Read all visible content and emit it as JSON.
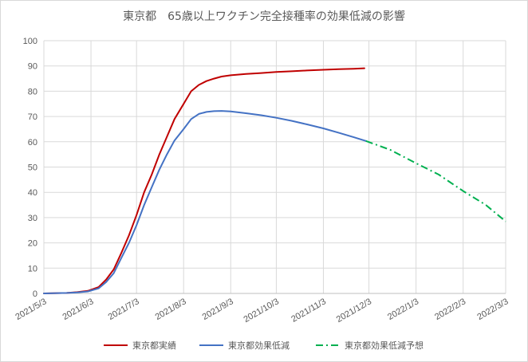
{
  "chart_data": {
    "type": "line",
    "title": "東京都　65歳以上ワクチン完全接種率の効果低減の影響",
    "xlabel": "",
    "ylabel": "",
    "ylim": [
      0,
      100
    ],
    "yticks": [
      0,
      10,
      20,
      30,
      40,
      50,
      60,
      70,
      80,
      90,
      100
    ],
    "xlim": [
      "2021/5/3",
      "2022/3/3"
    ],
    "xticks": [
      "2021/5/3",
      "2021/6/3",
      "2021/7/3",
      "2021/8/3",
      "2021/9/3",
      "2021/10/3",
      "2021/11/3",
      "2021/12/3",
      "2022/1/3",
      "2022/2/3",
      "2022/3/3"
    ],
    "grid": true,
    "legend_position": "bottom",
    "colors": {
      "grid": "#d9d9d9",
      "axis": "#bfbfbf"
    },
    "series": [
      {
        "name": "東京都実績",
        "color": "#c00000",
        "style": "solid",
        "points": [
          [
            "2021/5/3",
            0
          ],
          [
            "2021/5/18",
            0.2
          ],
          [
            "2021/5/25",
            0.5
          ],
          [
            "2021/6/1",
            1.0
          ],
          [
            "2021/6/8",
            2.5
          ],
          [
            "2021/6/13",
            5.5
          ],
          [
            "2021/6/18",
            9.5
          ],
          [
            "2021/6/23",
            16
          ],
          [
            "2021/6/28",
            23
          ],
          [
            "2021/7/3",
            31
          ],
          [
            "2021/7/8",
            40
          ],
          [
            "2021/7/13",
            47
          ],
          [
            "2021/7/18",
            55
          ],
          [
            "2021/7/23",
            62
          ],
          [
            "2021/7/28",
            69
          ],
          [
            "2021/8/3",
            75
          ],
          [
            "2021/8/8",
            80
          ],
          [
            "2021/8/13",
            82.5
          ],
          [
            "2021/8/18",
            84
          ],
          [
            "2021/8/23",
            85
          ],
          [
            "2021/8/28",
            85.8
          ],
          [
            "2021/9/3",
            86.3
          ],
          [
            "2021/9/13",
            86.8
          ],
          [
            "2021/9/23",
            87.2
          ],
          [
            "2021/10/3",
            87.6
          ],
          [
            "2021/10/13",
            87.9
          ],
          [
            "2021/10/23",
            88.2
          ],
          [
            "2021/11/3",
            88.5
          ],
          [
            "2021/11/13",
            88.7
          ],
          [
            "2021/11/23",
            88.9
          ],
          [
            "2021/11/30",
            89.1
          ]
        ]
      },
      {
        "name": "東京都効果低減",
        "color": "#4472c4",
        "style": "solid",
        "points": [
          [
            "2021/5/3",
            0
          ],
          [
            "2021/5/18",
            0.2
          ],
          [
            "2021/5/25",
            0.4
          ],
          [
            "2021/6/1",
            0.8
          ],
          [
            "2021/6/8",
            2.0
          ],
          [
            "2021/6/13",
            4.5
          ],
          [
            "2021/6/18",
            8
          ],
          [
            "2021/6/23",
            14
          ],
          [
            "2021/6/28",
            20
          ],
          [
            "2021/7/3",
            27
          ],
          [
            "2021/7/8",
            35
          ],
          [
            "2021/7/13",
            42
          ],
          [
            "2021/7/18",
            49
          ],
          [
            "2021/7/23",
            55
          ],
          [
            "2021/7/28",
            60.5
          ],
          [
            "2021/8/3",
            65
          ],
          [
            "2021/8/8",
            69
          ],
          [
            "2021/8/13",
            71
          ],
          [
            "2021/8/18",
            71.8
          ],
          [
            "2021/8/23",
            72.1
          ],
          [
            "2021/8/28",
            72.2
          ],
          [
            "2021/9/3",
            72
          ],
          [
            "2021/9/13",
            71.3
          ],
          [
            "2021/9/23",
            70.5
          ],
          [
            "2021/10/3",
            69.5
          ],
          [
            "2021/10/13",
            68.3
          ],
          [
            "2021/10/23",
            66.9
          ],
          [
            "2021/11/3",
            65.3
          ],
          [
            "2021/11/13",
            63.6
          ],
          [
            "2021/11/23",
            61.8
          ],
          [
            "2021/12/1",
            60.3
          ]
        ]
      },
      {
        "name": "東京都効果低減予想",
        "color": "#00b050",
        "style": "dash-dot",
        "points": [
          [
            "2021/12/1",
            60.3
          ],
          [
            "2021/12/17",
            56.8
          ],
          [
            "2022/1/3",
            51.5
          ],
          [
            "2022/1/18",
            47
          ],
          [
            "2022/2/3",
            40.5
          ],
          [
            "2022/2/18",
            35
          ],
          [
            "2022/3/3",
            28.5
          ]
        ]
      }
    ]
  }
}
